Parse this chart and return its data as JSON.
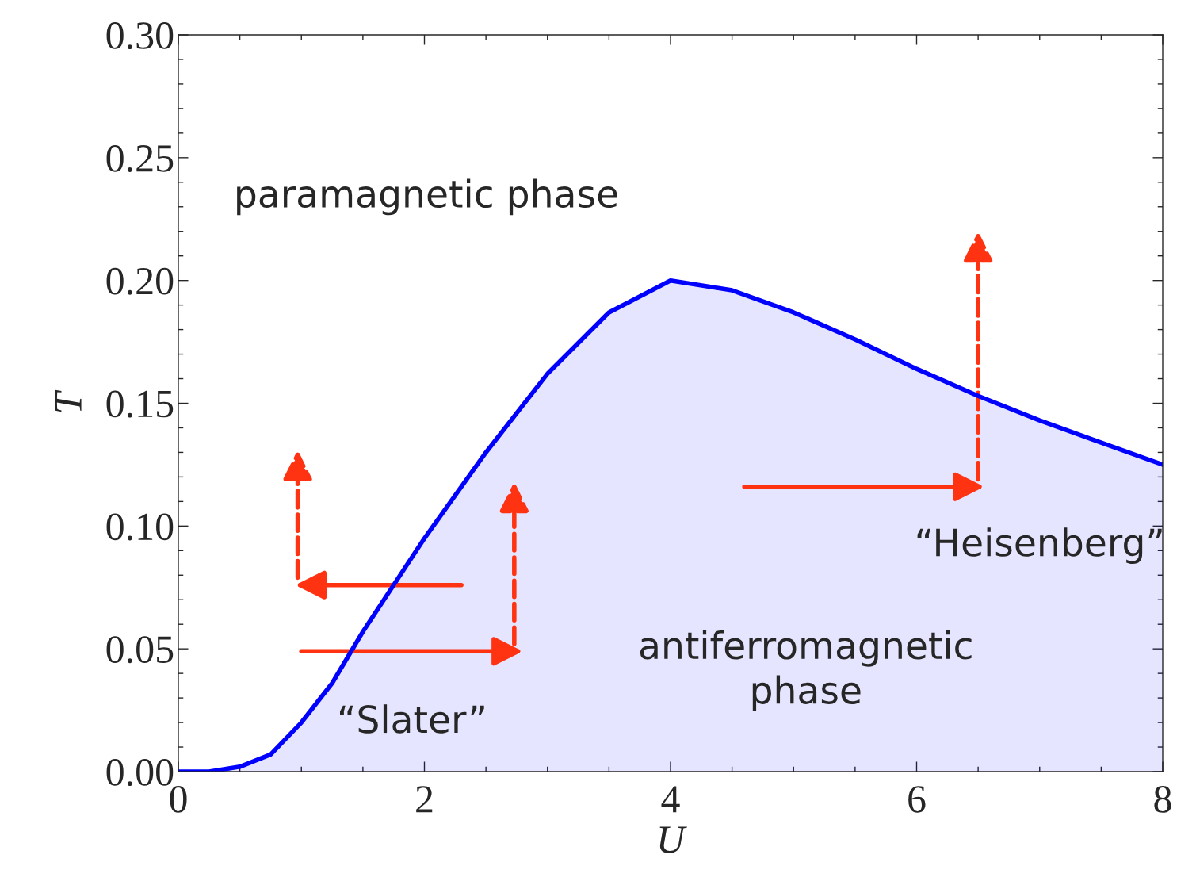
{
  "chart_data": {
    "type": "area",
    "xlabel": "U",
    "ylabel": "T",
    "x": [
      0,
      0.25,
      0.5,
      0.75,
      1,
      1.25,
      1.5,
      2,
      2.5,
      3,
      3.5,
      4,
      4.5,
      5,
      5.5,
      6,
      6.5,
      7,
      7.5,
      8
    ],
    "series": [
      {
        "color": "#0000ff",
        "values": [
          0,
          0,
          0.002,
          0.007,
          0.02,
          0.036,
          0.057,
          0.095,
          0.13,
          0.162,
          0.187,
          0.2,
          0.196,
          0.187,
          0.176,
          0.164,
          0.153,
          0.143,
          0.134,
          0.125
        ]
      }
    ],
    "xlim": [
      0,
      8
    ],
    "ylim": [
      0,
      0.3
    ],
    "xticks": [
      0,
      2,
      4,
      6,
      8
    ],
    "yticks": [
      {
        "value": 0,
        "label": "0.00"
      },
      {
        "value": 0.05,
        "label": "0.05"
      },
      {
        "value": 0.1,
        "label": "0.10"
      },
      {
        "value": 0.15,
        "label": "0.15"
      },
      {
        "value": 0.2,
        "label": "0.20"
      },
      {
        "value": 0.25,
        "label": "0.25"
      },
      {
        "value": 0.3,
        "label": "0.30"
      }
    ],
    "annotations": [
      "paramagnetic phase",
      "antiferromagnetic\nphase",
      "“Slater”",
      "“Heisenberg”"
    ],
    "grid": false,
    "legend": false
  }
}
